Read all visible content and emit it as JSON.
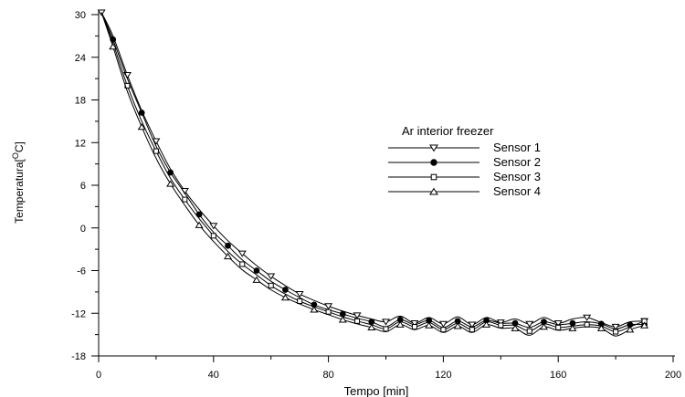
{
  "chart_data": {
    "type": "line",
    "xlabel": "Tempo [min]",
    "ylabel_main": "Temperatura[",
    "ylabel_sup": "O",
    "ylabel_unit": "C]",
    "xlim": [
      0,
      200
    ],
    "ylim": [
      -18,
      30
    ],
    "xticks": [
      0,
      40,
      80,
      120,
      160,
      200
    ],
    "yticks": [
      -18,
      -12,
      -6,
      0,
      6,
      12,
      18,
      24,
      30
    ],
    "grid": false,
    "legend": {
      "title": "Ar interior freezer",
      "placement": "center-right"
    },
    "series": [
      {
        "name": "Sensor 1",
        "marker": "triangle-down",
        "x": [
          1,
          5,
          10,
          15,
          20,
          25,
          30,
          35,
          40,
          45,
          50,
          55,
          60,
          65,
          70,
          75,
          80,
          85,
          90,
          95,
          100,
          105,
          110,
          115,
          120,
          125,
          130,
          135,
          140,
          145,
          150,
          155,
          160,
          165,
          170,
          175,
          180,
          185,
          190
        ],
        "y": [
          30.3,
          27,
          21.5,
          16.5,
          12.2,
          8.3,
          5.2,
          2.6,
          0.3,
          -1.8,
          -3.6,
          -5.3,
          -6.8,
          -8.1,
          -9.3,
          -10.2,
          -11,
          -11.7,
          -12.3,
          -12.8,
          -13.2,
          -12.4,
          -13.4,
          -12.6,
          -13.5,
          -12.5,
          -13.6,
          -12.6,
          -13.3,
          -12.8,
          -13.5,
          -12.6,
          -13.4,
          -12.8,
          -12.6,
          -13.3,
          -13.9,
          -13.2,
          -13.1
        ]
      },
      {
        "name": "Sensor 2",
        "marker": "circle",
        "x": [
          1,
          5,
          10,
          15,
          20,
          25,
          30,
          35,
          40,
          45,
          50,
          55,
          60,
          65,
          70,
          75,
          80,
          85,
          90,
          95,
          100,
          105,
          110,
          115,
          120,
          125,
          130,
          135,
          140,
          145,
          150,
          155,
          160,
          165,
          170,
          175,
          180,
          185,
          190
        ],
        "y": [
          30.3,
          26.5,
          21,
          16.2,
          11.5,
          7.8,
          4.9,
          1.9,
          -0.6,
          -2.5,
          -4.5,
          -6,
          -7.5,
          -8.7,
          -9.8,
          -10.8,
          -11.5,
          -12.1,
          -12.7,
          -13.2,
          -13.9,
          -12.9,
          -13.6,
          -13,
          -14,
          -13.1,
          -13.9,
          -13,
          -13.4,
          -13.4,
          -14,
          -13.2,
          -13.6,
          -13.4,
          -13.2,
          -13.5,
          -14.2,
          -13.6,
          -13.6
        ]
      },
      {
        "name": "Sensor 3",
        "marker": "square",
        "x": [
          1,
          5,
          10,
          15,
          20,
          25,
          30,
          35,
          40,
          45,
          50,
          55,
          60,
          65,
          70,
          75,
          80,
          85,
          90,
          95,
          100,
          105,
          110,
          115,
          120,
          125,
          130,
          135,
          140,
          145,
          150,
          155,
          160,
          165,
          170,
          175,
          180,
          185,
          190
        ],
        "y": [
          30.3,
          26,
          20,
          15,
          10.8,
          7,
          4,
          1.3,
          -1.1,
          -3.3,
          -5.1,
          -6.6,
          -8.1,
          -9.3,
          -10.3,
          -11.1,
          -11.8,
          -12.5,
          -13.1,
          -13.6,
          -14.2,
          -13.2,
          -13.9,
          -13.3,
          -14.3,
          -13.4,
          -14.3,
          -13.2,
          -13.7,
          -13.7,
          -14.5,
          -13.5,
          -14,
          -13.8,
          -13.6,
          -13.8,
          -14.6,
          -13.9,
          -13.1
        ]
      },
      {
        "name": "Sensor 4",
        "marker": "triangle-up",
        "x": [
          1,
          5,
          10,
          15,
          20,
          25,
          30,
          35,
          40,
          45,
          50,
          55,
          60,
          65,
          70,
          75,
          80,
          85,
          90,
          95,
          100,
          105,
          110,
          115,
          120,
          125,
          130,
          135,
          140,
          145,
          150,
          155,
          160,
          165,
          170,
          175,
          180,
          185,
          190
        ],
        "y": [
          30.3,
          25.5,
          19.2,
          14.2,
          9.8,
          6.2,
          3.2,
          0.4,
          -1.9,
          -4,
          -5.9,
          -7.3,
          -8.7,
          -9.8,
          -10.7,
          -11.5,
          -12.2,
          -12.9,
          -13.5,
          -14,
          -14.6,
          -13.6,
          -14.3,
          -13.7,
          -14.7,
          -13.8,
          -14.7,
          -13.6,
          -14.1,
          -14.1,
          -15.1,
          -13.9,
          -14.4,
          -14.1,
          -13.9,
          -14.1,
          -15.2,
          -14.3,
          -13.7
        ]
      }
    ]
  }
}
